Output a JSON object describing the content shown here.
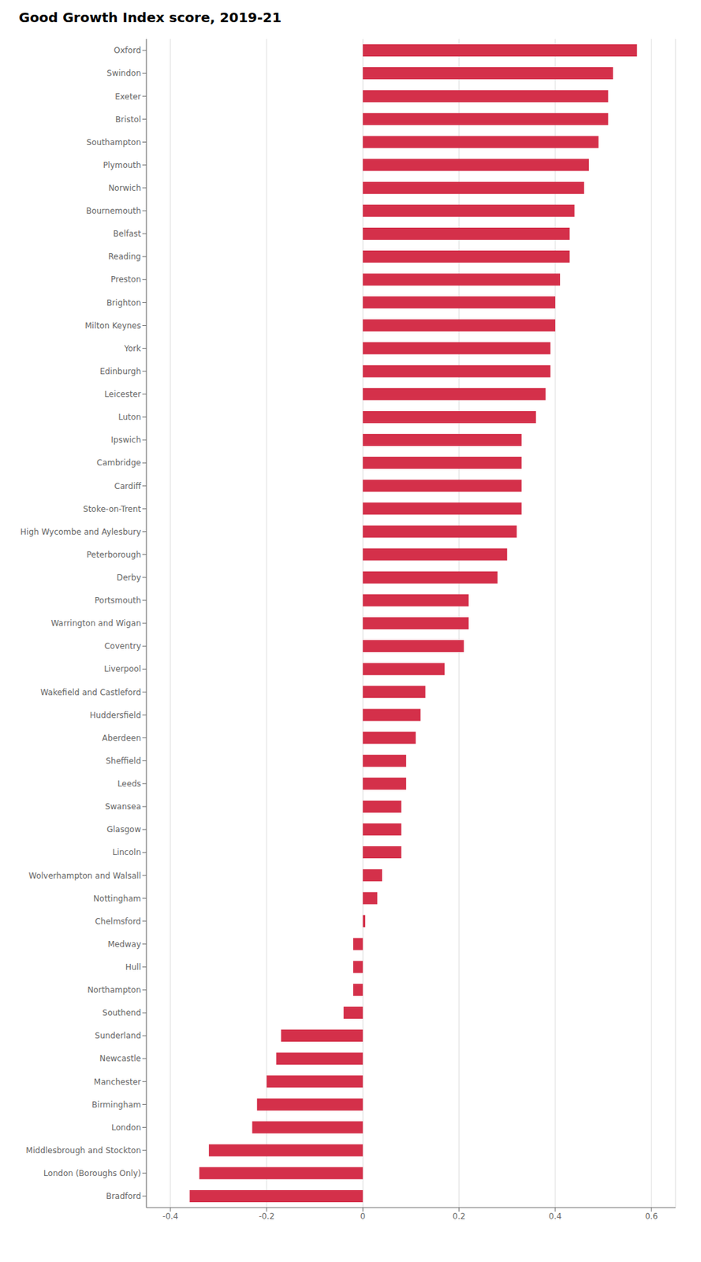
{
  "chart_data": {
    "type": "bar",
    "title": "Good Growth Index score, 2019-21",
    "orientation": "horizontal",
    "color": "#d4304a",
    "grid": true,
    "xlim": [
      -0.45,
      0.65
    ],
    "xticks": [
      -0.4,
      -0.2,
      0.0,
      0.2,
      0.4,
      0.6
    ],
    "categories": [
      "Oxford",
      "Swindon",
      "Exeter",
      "Bristol",
      "Southampton",
      "Plymouth",
      "Norwich",
      "Bournemouth",
      "Belfast",
      "Reading",
      "Preston",
      "Brighton",
      "Milton Keynes",
      "York",
      "Edinburgh",
      "Leicester",
      "Luton",
      "Ipswich",
      "Cambridge",
      "Cardiff",
      "Stoke-on-Trent",
      "High Wycombe and Aylesbury",
      "Peterborough",
      "Derby",
      "Portsmouth",
      "Warrington and Wigan",
      "Coventry",
      "Liverpool",
      "Wakefield and Castleford",
      "Huddersfield",
      "Aberdeen",
      "Sheffield",
      "Leeds",
      "Swansea",
      "Glasgow",
      "Lincoln",
      "Wolverhampton and Walsall",
      "Nottingham",
      "Chelmsford",
      "Medway",
      "Hull",
      "Northampton",
      "Southend",
      "Sunderland",
      "Newcastle",
      "Manchester",
      "Birmingham",
      "London",
      "Middlesbrough and Stockton",
      "London (Boroughs Only)",
      "Bradford"
    ],
    "values": [
      0.57,
      0.52,
      0.51,
      0.51,
      0.49,
      0.47,
      0.46,
      0.44,
      0.43,
      0.43,
      0.41,
      0.4,
      0.4,
      0.39,
      0.39,
      0.38,
      0.36,
      0.33,
      0.33,
      0.33,
      0.33,
      0.32,
      0.3,
      0.28,
      0.22,
      0.22,
      0.21,
      0.17,
      0.13,
      0.12,
      0.11,
      0.09,
      0.09,
      0.08,
      0.08,
      0.08,
      0.04,
      0.03,
      0.005,
      -0.02,
      -0.02,
      -0.02,
      -0.04,
      -0.17,
      -0.18,
      -0.2,
      -0.22,
      -0.23,
      -0.32,
      -0.34,
      -0.36
    ]
  }
}
